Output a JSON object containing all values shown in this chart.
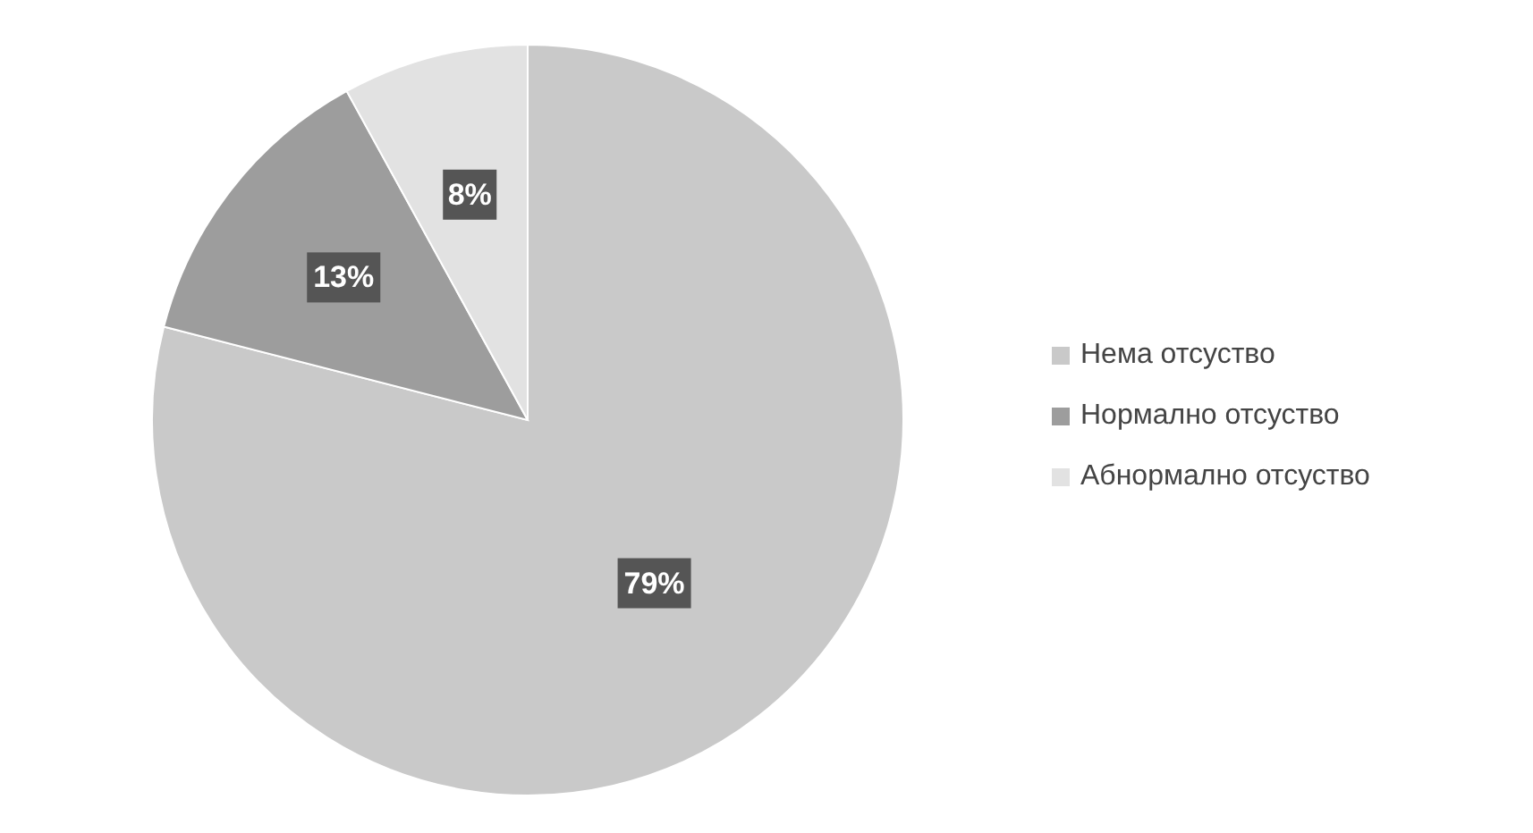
{
  "chart_data": {
    "type": "pie",
    "categories": [
      "Нема отсуство",
      "Нормално отсуство",
      "Абнормално отсуство"
    ],
    "values": [
      79,
      13,
      8
    ],
    "colors": [
      "#c9c9c9",
      "#9d9d9d",
      "#e2e2e2"
    ],
    "value_labels": [
      "79%",
      "13%",
      "8%"
    ],
    "legend": "right"
  }
}
